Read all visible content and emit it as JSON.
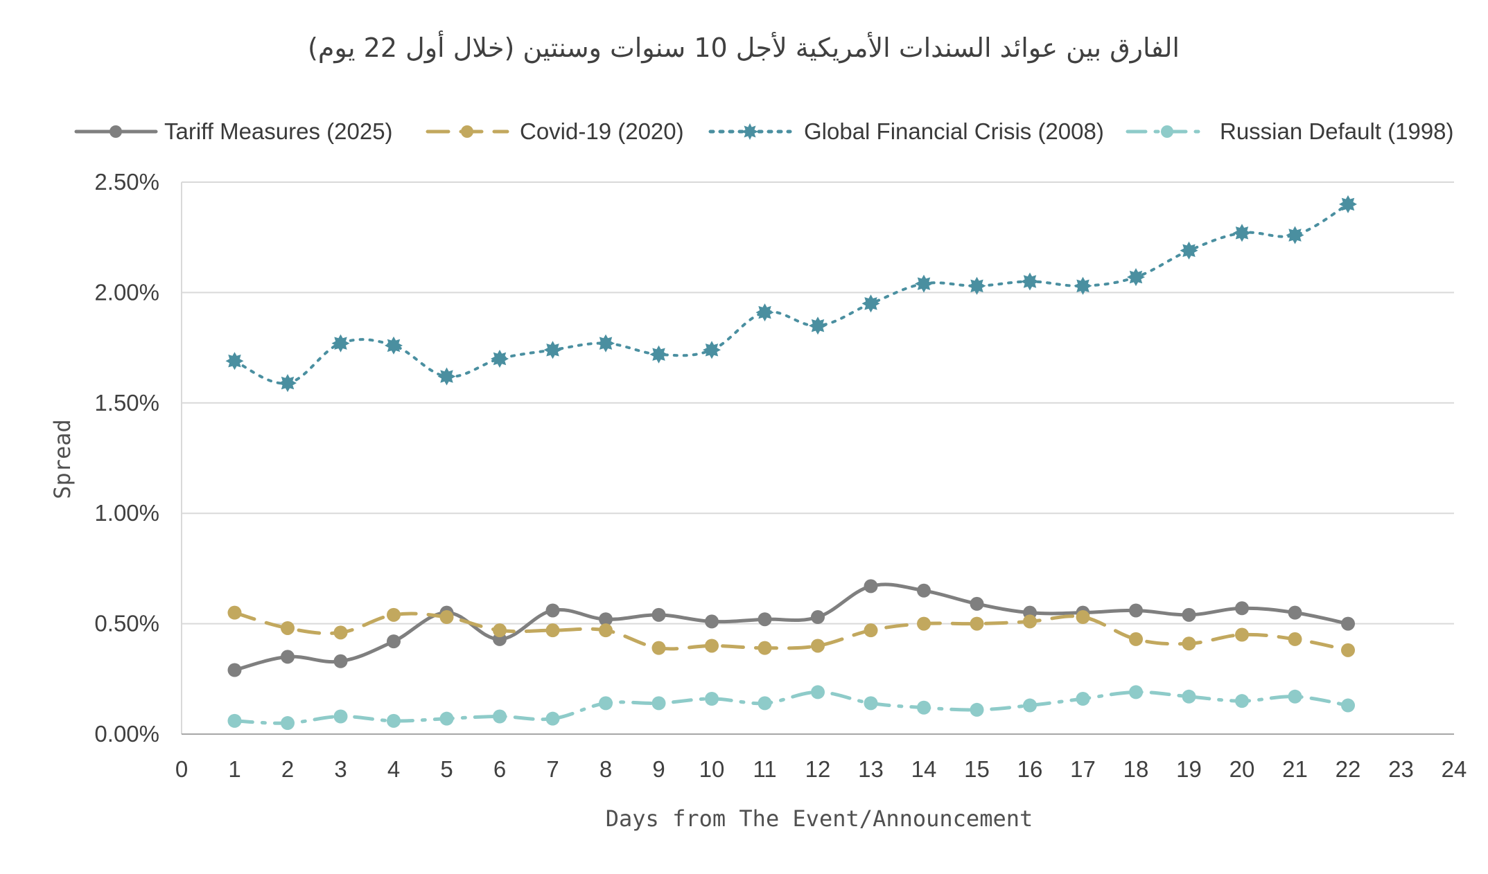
{
  "chart_data": {
    "type": "line",
    "title": "الفارق بين عوائد السندات الأمريكية لأجل 10 سنوات وسنتين (خلال أول 22 يوم)",
    "xlabel": "Days from The Event/Announcement",
    "ylabel": "Spread",
    "xlim": [
      0,
      24
    ],
    "ylim": [
      0,
      0.025
    ],
    "x_ticks": [
      "0",
      "1",
      "2",
      "3",
      "4",
      "5",
      "6",
      "7",
      "8",
      "9",
      "10",
      "11",
      "12",
      "13",
      "14",
      "15",
      "16",
      "17",
      "18",
      "19",
      "20",
      "21",
      "22",
      "23",
      "24"
    ],
    "y_ticks": [
      "0.00%",
      "0.50%",
      "1.00%",
      "1.50%",
      "2.00%",
      "2.50%"
    ],
    "grid": "horizontal",
    "legend_position": "top",
    "x": [
      1,
      2,
      3,
      4,
      5,
      6,
      7,
      8,
      9,
      10,
      11,
      12,
      13,
      14,
      15,
      16,
      17,
      18,
      19,
      20,
      21,
      22
    ],
    "series": [
      {
        "name": "Tariff Measures (2025)",
        "color": "#7f7f7f",
        "line_style": "solid",
        "marker": "circle",
        "values": [
          0.0029,
          0.0035,
          0.0033,
          0.0042,
          0.0055,
          0.0043,
          0.0056,
          0.0052,
          0.0054,
          0.0051,
          0.0052,
          0.0053,
          0.0067,
          0.0065,
          0.0059,
          0.0055,
          0.0055,
          0.0056,
          0.0054,
          0.0057,
          0.0055,
          0.005
        ]
      },
      {
        "name": "Covid-19 (2020)",
        "color": "#c2a85e",
        "line_style": "dashed",
        "marker": "circle",
        "values": [
          0.0055,
          0.0048,
          0.0046,
          0.0054,
          0.0053,
          0.0047,
          0.0047,
          0.0047,
          0.0039,
          0.004,
          0.0039,
          0.004,
          0.0047,
          0.005,
          0.005,
          0.0051,
          0.0053,
          0.0043,
          0.0041,
          0.0045,
          0.0043,
          0.0038
        ]
      },
      {
        "name": "Global Financial Crisis (2008)",
        "color": "#4a8fa0",
        "line_style": "dotted",
        "marker": "star",
        "values": [
          0.0169,
          0.0159,
          0.0177,
          0.0176,
          0.0162,
          0.017,
          0.0174,
          0.0177,
          0.0172,
          0.0174,
          0.0191,
          0.0185,
          0.0195,
          0.0204,
          0.0203,
          0.0205,
          0.0203,
          0.0207,
          0.0219,
          0.0227,
          0.0226,
          0.024
        ]
      },
      {
        "name": "Russian Default (1998)",
        "color": "#8ecbc9",
        "line_style": "dashdot",
        "marker": "circle",
        "values": [
          0.0006,
          0.0005,
          0.0008,
          0.0006,
          0.0007,
          0.0008,
          0.0007,
          0.0014,
          0.0014,
          0.0016,
          0.0014,
          0.0019,
          0.0014,
          0.0012,
          0.0011,
          0.0013,
          0.0016,
          0.0019,
          0.0017,
          0.0015,
          0.0017,
          0.0013
        ]
      }
    ]
  }
}
